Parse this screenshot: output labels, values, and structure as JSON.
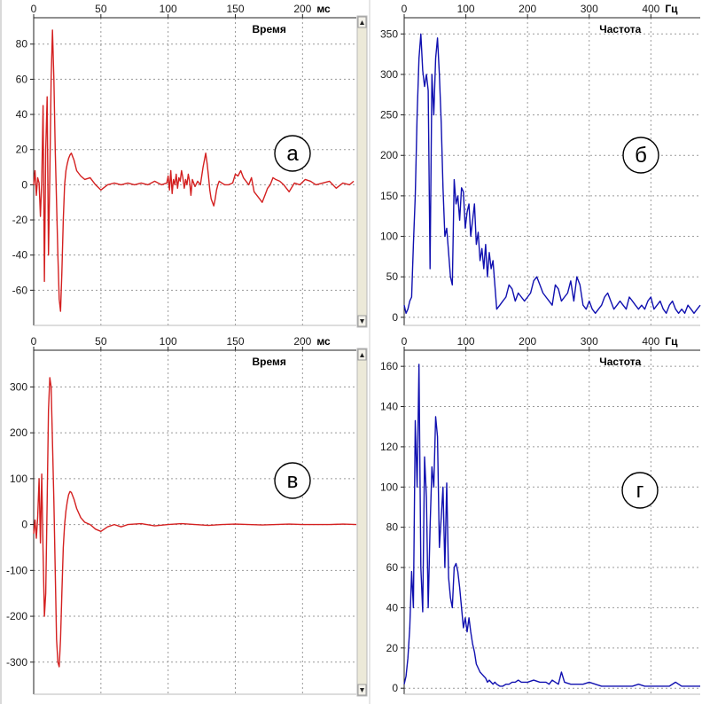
{
  "chart_data": [
    {
      "type": "line",
      "id": "a",
      "badge": "а",
      "title": "Время",
      "x_unit_label": "мс",
      "xlim": [
        0,
        240
      ],
      "ylim": [
        -80,
        95
      ],
      "x_ticks": [
        0,
        50,
        100,
        150,
        200
      ],
      "y_ticks": [
        80,
        60,
        40,
        20,
        0,
        -20,
        -40,
        -60
      ],
      "grid": true,
      "color": "#d42020",
      "series": [
        {
          "x": [
            0,
            1,
            2,
            3,
            4,
            5,
            6,
            7,
            8,
            9,
            10,
            11,
            12,
            13,
            14,
            15,
            16,
            17,
            18,
            19,
            20,
            21,
            22,
            23,
            24,
            25,
            26,
            27,
            28,
            30,
            32,
            35,
            38,
            42,
            46,
            50,
            55,
            60,
            65,
            70,
            75,
            80,
            85,
            90,
            95,
            99,
            100,
            101,
            102,
            103,
            104,
            105,
            106,
            107,
            108,
            109,
            110,
            111,
            112,
            113,
            114,
            115,
            116,
            117,
            118,
            120,
            122,
            124,
            126,
            128,
            129,
            130,
            131,
            132,
            133,
            134,
            135,
            136,
            137,
            138,
            140,
            142,
            145,
            148,
            150,
            152,
            154,
            156,
            158,
            160,
            162,
            164,
            166,
            168,
            170,
            172,
            174,
            176,
            178,
            180,
            183,
            186,
            190,
            194,
            198,
            202,
            206,
            210,
            215,
            220,
            225,
            230,
            235,
            238
          ],
          "y": [
            0,
            8,
            -6,
            4,
            1,
            -18,
            2,
            45,
            -55,
            20,
            50,
            -40,
            5,
            60,
            88,
            60,
            20,
            -10,
            -40,
            -65,
            -72,
            -50,
            -20,
            0,
            8,
            12,
            15,
            17,
            18,
            14,
            8,
            5,
            3,
            4,
            0,
            -3,
            0,
            1,
            0,
            1,
            0,
            1,
            0,
            2,
            0,
            1,
            5,
            -3,
            8,
            -5,
            3,
            0,
            6,
            -2,
            4,
            2,
            8,
            4,
            -2,
            3,
            0,
            6,
            2,
            -6,
            3,
            -1,
            2,
            0,
            10,
            18,
            12,
            5,
            -3,
            -8,
            -10,
            -12,
            -8,
            -3,
            0,
            2,
            1,
            0,
            0,
            1,
            6,
            5,
            8,
            4,
            2,
            0,
            4,
            -4,
            -6,
            -8,
            -10,
            -6,
            -2,
            0,
            4,
            3,
            2,
            0,
            -4,
            1,
            0,
            3,
            2,
            0,
            1,
            2,
            -2,
            1,
            0,
            2
          ]
        }
      ]
    },
    {
      "type": "line",
      "id": "b",
      "badge": "б",
      "title": "Частота",
      "x_unit_label": "Гц",
      "xlim": [
        0,
        480
      ],
      "ylim": [
        -10,
        370
      ],
      "x_ticks": [
        0,
        100,
        200,
        300,
        400
      ],
      "y_ticks": [
        350,
        300,
        250,
        200,
        150,
        100,
        50,
        0
      ],
      "grid": true,
      "color": "#1010b0",
      "series": [
        {
          "x": [
            0,
            3,
            6,
            9,
            12,
            15,
            18,
            21,
            24,
            27,
            30,
            33,
            36,
            39,
            42,
            45,
            48,
            51,
            54,
            57,
            60,
            63,
            66,
            69,
            72,
            75,
            78,
            81,
            84,
            87,
            90,
            93,
            96,
            99,
            102,
            105,
            108,
            111,
            114,
            117,
            120,
            123,
            126,
            129,
            132,
            135,
            138,
            141,
            144,
            147,
            150,
            155,
            160,
            165,
            170,
            175,
            180,
            185,
            190,
            195,
            200,
            205,
            210,
            215,
            220,
            225,
            230,
            235,
            240,
            245,
            250,
            255,
            260,
            265,
            270,
            275,
            280,
            285,
            290,
            295,
            300,
            305,
            310,
            315,
            320,
            325,
            330,
            335,
            340,
            345,
            350,
            355,
            360,
            365,
            370,
            375,
            380,
            385,
            390,
            395,
            400,
            405,
            410,
            415,
            420,
            425,
            430,
            435,
            440,
            445,
            450,
            455,
            460,
            465,
            470,
            475,
            480
          ],
          "y": [
            15,
            5,
            10,
            20,
            25,
            90,
            150,
            250,
            320,
            350,
            305,
            285,
            300,
            280,
            60,
            300,
            250,
            320,
            345,
            300,
            240,
            160,
            100,
            110,
            80,
            50,
            40,
            170,
            140,
            150,
            120,
            160,
            155,
            110,
            130,
            140,
            100,
            120,
            140,
            90,
            105,
            70,
            85,
            60,
            90,
            50,
            80,
            60,
            70,
            40,
            10,
            15,
            20,
            25,
            40,
            35,
            20,
            30,
            25,
            20,
            25,
            30,
            45,
            50,
            40,
            30,
            25,
            20,
            15,
            40,
            35,
            20,
            25,
            30,
            45,
            20,
            50,
            40,
            15,
            10,
            20,
            10,
            5,
            10,
            15,
            25,
            30,
            20,
            10,
            15,
            20,
            15,
            10,
            25,
            20,
            15,
            10,
            15,
            10,
            20,
            25,
            10,
            15,
            20,
            10,
            5,
            15,
            20,
            10,
            5,
            10,
            5,
            15,
            10,
            5,
            10,
            15
          ]
        }
      ]
    },
    {
      "type": "line",
      "id": "v",
      "badge": "в",
      "title": "Время",
      "x_unit_label": "мс",
      "xlim": [
        0,
        240
      ],
      "ylim": [
        -370,
        380
      ],
      "x_ticks": [
        0,
        50,
        100,
        150,
        200
      ],
      "y_ticks": [
        300,
        200,
        100,
        0,
        -100,
        -200,
        -300
      ],
      "grid": true,
      "color": "#d42020",
      "series": [
        {
          "x": [
            0,
            1,
            2,
            3,
            4,
            5,
            6,
            7,
            8,
            9,
            10,
            11,
            12,
            13,
            14,
            15,
            16,
            17,
            18,
            19,
            20,
            21,
            22,
            23,
            24,
            25,
            26,
            27,
            28,
            30,
            32,
            35,
            38,
            42,
            46,
            50,
            55,
            60,
            65,
            70,
            80,
            90,
            100,
            110,
            120,
            130,
            140,
            150,
            160,
            170,
            180,
            190,
            200,
            210,
            220,
            230,
            240
          ],
          "y": [
            -20,
            10,
            -30,
            15,
            100,
            -40,
            110,
            -60,
            -200,
            -150,
            50,
            250,
            320,
            300,
            180,
            50,
            -100,
            -250,
            -300,
            -310,
            -250,
            -150,
            -50,
            0,
            30,
            50,
            65,
            72,
            70,
            55,
            35,
            15,
            5,
            0,
            -10,
            -15,
            -5,
            0,
            -5,
            0,
            2,
            -3,
            0,
            2,
            0,
            -2,
            0,
            1,
            0,
            -1,
            0,
            1,
            0,
            0,
            0,
            1,
            0
          ]
        }
      ]
    },
    {
      "type": "line",
      "id": "g",
      "badge": "г",
      "title": "Частота",
      "x_unit_label": "Гц",
      "xlim": [
        0,
        480
      ],
      "ylim": [
        -3,
        168
      ],
      "x_ticks": [
        0,
        100,
        200,
        300,
        400
      ],
      "y_ticks": [
        160,
        140,
        120,
        100,
        80,
        60,
        40,
        20,
        0
      ],
      "grid": true,
      "color": "#1010b0",
      "series": [
        {
          "x": [
            0,
            3,
            6,
            9,
            12,
            15,
            18,
            21,
            24,
            27,
            30,
            33,
            36,
            39,
            42,
            45,
            48,
            51,
            54,
            57,
            60,
            63,
            66,
            69,
            72,
            75,
            78,
            81,
            84,
            87,
            90,
            93,
            96,
            99,
            102,
            105,
            108,
            111,
            114,
            117,
            120,
            123,
            126,
            129,
            132,
            135,
            138,
            141,
            144,
            147,
            150,
            155,
            160,
            165,
            170,
            175,
            180,
            185,
            190,
            200,
            210,
            220,
            230,
            235,
            240,
            245,
            250,
            255,
            260,
            270,
            280,
            290,
            300,
            310,
            320,
            330,
            340,
            350,
            360,
            370,
            380,
            390,
            400,
            410,
            420,
            430,
            440,
            450,
            460,
            470,
            480
          ],
          "y": [
            2,
            6,
            15,
            30,
            58,
            40,
            133,
            100,
            161,
            60,
            38,
            115,
            95,
            40,
            80,
            110,
            100,
            135,
            125,
            70,
            85,
            100,
            60,
            102,
            55,
            45,
            40,
            60,
            62,
            58,
            50,
            40,
            30,
            35,
            28,
            35,
            28,
            22,
            18,
            12,
            10,
            8,
            7,
            6,
            5,
            3,
            4,
            3,
            2,
            3,
            2,
            1,
            1,
            2,
            2,
            3,
            3,
            4,
            3,
            3,
            4,
            3,
            3,
            2,
            4,
            3,
            2,
            8,
            3,
            2,
            2,
            2,
            3,
            2,
            1,
            1,
            1,
            1,
            1,
            1,
            2,
            1,
            1,
            1,
            1,
            1,
            3,
            1,
            1,
            1,
            1
          ]
        }
      ]
    }
  ]
}
